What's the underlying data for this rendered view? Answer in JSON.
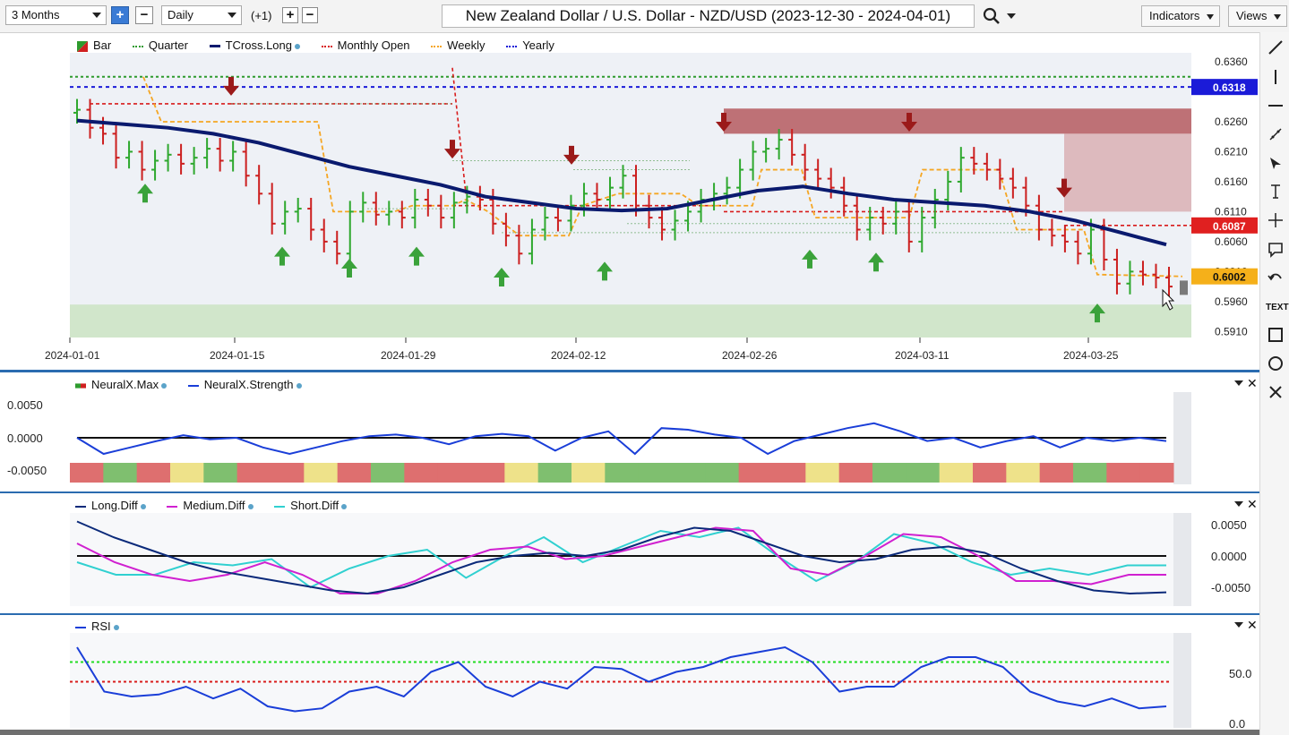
{
  "toolbar": {
    "range": "3 Months",
    "interval": "Daily",
    "offset": "(+1)",
    "plus": "+",
    "minus": "−",
    "title": "New Zealand Dollar / U.S. Dollar - NZD/USD (2023-12-30 - 2024-04-01)",
    "indicators_label": "Indicators",
    "views_label": "Views"
  },
  "main_legend": [
    {
      "label": "Bar",
      "color": "#2e9b2e",
      "icon": "bar-swatch-icon"
    },
    {
      "label": "Quarter",
      "color": "#2e9b2e",
      "icon": "dotted-line-icon"
    },
    {
      "label": "TCross.Long",
      "color": "#0a1a6e",
      "icon": "solid-line-icon"
    },
    {
      "label": "Monthly Open",
      "color": "#d81b1b",
      "icon": "dotted-line-icon"
    },
    {
      "label": "Weekly",
      "color": "#f5a623",
      "icon": "dotted-line-icon"
    },
    {
      "label": "Yearly",
      "color": "#1b1bd8",
      "icon": "dotted-line-icon"
    }
  ],
  "price_axis": [
    "0.6360",
    "0.6260",
    "0.6210",
    "0.6160",
    "0.6110",
    "0.6060",
    "0.6010",
    "0.5960",
    "0.5910"
  ],
  "price_tags": {
    "yearly": {
      "value": "0.6318",
      "color": "#1b1bd8"
    },
    "monthly": {
      "value": "0.6087",
      "color": "#e02020"
    },
    "weekly": {
      "value": "0.6002",
      "color": "#f5b01a"
    }
  },
  "date_axis": [
    "2024-01-01",
    "2024-01-15",
    "2024-01-29",
    "2024-02-12",
    "2024-02-26",
    "2024-03-11",
    "2024-03-25"
  ],
  "neural_panel": {
    "legend": [
      {
        "label": "NeuralX.Max",
        "color": "#d84040"
      },
      {
        "label": "NeuralX.Strength",
        "color": "#1a3ed8"
      }
    ],
    "axis": [
      "0.0050",
      "0.0000",
      "-0.0050"
    ]
  },
  "diff_panel": {
    "legend": [
      {
        "label": "Long.Diff",
        "color": "#0b2a7a"
      },
      {
        "label": "Medium.Diff",
        "color": "#d020d0"
      },
      {
        "label": "Short.Diff",
        "color": "#30d0d0"
      }
    ],
    "axis": [
      "0.0050",
      "0.0000",
      "-0.0050"
    ]
  },
  "rsi_panel": {
    "legend": [
      {
        "label": "RSI",
        "color": "#1a3ed8"
      }
    ],
    "axis": [
      "50.0",
      "0.0"
    ]
  },
  "sidebar_icons": [
    "line-draw-icon",
    "vertical-line-icon",
    "horizontal-line-icon",
    "pencil-icon",
    "arrow-icon",
    "fib-icon",
    "crosshair-icon",
    "comment-icon",
    "undo-icon",
    "text-icon",
    "rectangle-icon",
    "circle-icon",
    "close-icon"
  ],
  "sidebar_text_label": "TEXT",
  "chart_data": {
    "type": "candlestick",
    "title": "New Zealand Dollar / U.S. Dollar - NZD/USD (2023-12-30 - 2024-04-01)",
    "x_range": [
      "2024-01-01",
      "2024-03-29"
    ],
    "y_range": [
      0.59,
      0.6375
    ],
    "bar_closes": [
      0.628,
      0.625,
      0.624,
      0.62,
      0.621,
      0.618,
      0.6195,
      0.6205,
      0.619,
      0.62,
      0.6215,
      0.6195,
      0.621,
      0.617,
      0.614,
      0.609,
      0.611,
      0.6115,
      0.608,
      0.606,
      0.604,
      0.611,
      0.6125,
      0.6105,
      0.611,
      0.61,
      0.613,
      0.612,
      0.61,
      0.6125,
      0.6135,
      0.613,
      0.609,
      0.607,
      0.604,
      0.608,
      0.61,
      0.6095,
      0.612,
      0.614,
      0.613,
      0.615,
      0.617,
      0.612,
      0.61,
      0.608,
      0.6095,
      0.611,
      0.613,
      0.614,
      0.615,
      0.618,
      0.621,
      0.6215,
      0.623,
      0.6205,
      0.618,
      0.6165,
      0.615,
      0.612,
      0.608,
      0.61,
      0.609,
      0.611,
      0.606,
      0.61,
      0.613,
      0.616,
      0.62,
      0.619,
      0.618,
      0.6165,
      0.615,
      0.612,
      0.608,
      0.607,
      0.606,
      0.604,
      0.608,
      0.603,
      0.599,
      0.601,
      0.6005,
      0.6,
      0.5985
    ],
    "tcross_long": [
      0.6262,
      0.6256,
      0.625,
      0.624,
      0.6225,
      0.6205,
      0.6185,
      0.617,
      0.6155,
      0.6135,
      0.6125,
      0.6115,
      0.6112,
      0.6115,
      0.613,
      0.6145,
      0.6152,
      0.614,
      0.613,
      0.6125,
      0.612,
      0.611,
      0.6095,
      0.6075,
      0.6055
    ],
    "quarter_level": 0.6335,
    "yearly_level": 0.6318,
    "monthly_open": 0.6087,
    "weekly_level": 0.6002,
    "current_price": 0.5985,
    "neural_strength": [
      0.0,
      -0.005,
      -0.003,
      -0.001,
      0.0008,
      -0.0005,
      0.0,
      -0.003,
      -0.005,
      -0.003,
      -0.001,
      0.0005,
      0.001,
      0.0,
      -0.002,
      0.0005,
      0.0012,
      0.0005,
      -0.004,
      0.0,
      0.002,
      -0.005,
      0.003,
      0.0025,
      0.001,
      0.0,
      -0.005,
      -0.001,
      0.001,
      0.003,
      0.0045,
      0.002,
      -0.001,
      0.0,
      -0.003,
      -0.001,
      0.0005,
      -0.003,
      0.0,
      -0.001,
      0.0,
      -0.001
    ],
    "long_diff": [
      0.0055,
      0.003,
      0.001,
      -0.001,
      -0.0025,
      -0.0035,
      -0.0045,
      -0.0055,
      -0.006,
      -0.005,
      -0.003,
      -0.001,
      0.0,
      0.0005,
      0.0,
      0.001,
      0.003,
      0.0045,
      0.004,
      0.002,
      0.0,
      -0.001,
      -0.0005,
      0.001,
      0.0015,
      0.0005,
      -0.002,
      -0.004,
      -0.0055,
      -0.006,
      -0.0058
    ],
    "medium_diff": [
      0.002,
      -0.001,
      -0.003,
      -0.004,
      -0.003,
      -0.001,
      -0.003,
      -0.006,
      -0.006,
      -0.004,
      -0.001,
      0.001,
      0.0015,
      -0.0005,
      0.0,
      0.0015,
      0.003,
      0.0045,
      0.004,
      -0.002,
      -0.003,
      0.0,
      0.0035,
      0.003,
      0.0,
      -0.004,
      -0.004,
      -0.0045,
      -0.003,
      -0.003
    ],
    "short_diff": [
      -0.001,
      -0.003,
      -0.003,
      -0.001,
      -0.0015,
      -0.0005,
      -0.005,
      -0.002,
      0.0,
      0.001,
      -0.0035,
      0.0,
      0.003,
      -0.001,
      0.0015,
      0.004,
      0.003,
      0.0045,
      0.0,
      -0.004,
      -0.001,
      0.0035,
      0.002,
      -0.001,
      -0.003,
      -0.002,
      -0.003,
      -0.0015,
      -0.0015
    ],
    "rsi": [
      80,
      35,
      30,
      32,
      40,
      28,
      38,
      20,
      15,
      18,
      35,
      40,
      30,
      55,
      65,
      40,
      30,
      45,
      38,
      60,
      58,
      45,
      55,
      60,
      70,
      75,
      80,
      65,
      35,
      40,
      40,
      60,
      70,
      70,
      60,
      35,
      25,
      20,
      28,
      18,
      20
    ],
    "neural_colors": [
      "red",
      "green",
      "red",
      "yellow",
      "green",
      "red",
      "red",
      "yellow",
      "red",
      "green",
      "red",
      "red",
      "red",
      "yellow",
      "green",
      "yellow",
      "green",
      "green",
      "green",
      "green",
      "red",
      "red",
      "yellow",
      "red",
      "green",
      "green",
      "yellow",
      "red",
      "yellow",
      "red",
      "green",
      "red",
      "red"
    ]
  }
}
